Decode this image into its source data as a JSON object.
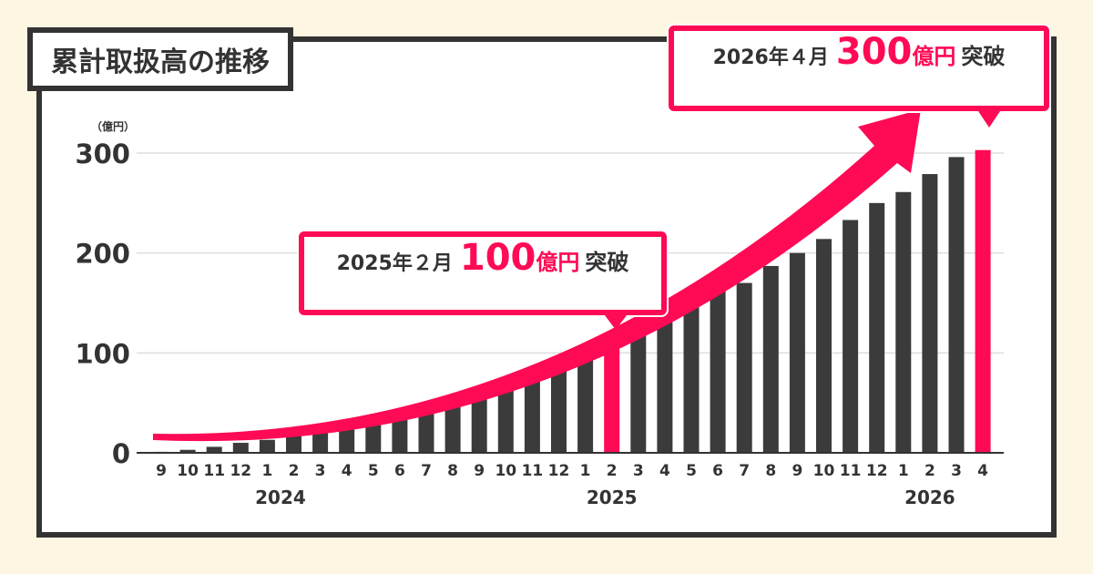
{
  "title": "累計取扱高の推移",
  "chart_data": {
    "type": "bar",
    "unit_label": "（億円）",
    "ylim": [
      0,
      300
    ],
    "yticks": [
      "0",
      "100",
      "200",
      "300"
    ],
    "categories": [
      "9",
      "10",
      "11",
      "12",
      "1",
      "2",
      "3",
      "4",
      "5",
      "6",
      "7",
      "8",
      "9",
      "10",
      "11",
      "12",
      "1",
      "2",
      "3",
      "4",
      "5",
      "6",
      "7",
      "8",
      "9",
      "10",
      "11",
      "12",
      "1",
      "2",
      "3",
      "4"
    ],
    "values": [
      1,
      3,
      6,
      10,
      13,
      17,
      20,
      25,
      28,
      33,
      39,
      47,
      58,
      70,
      79,
      89,
      100,
      106,
      121,
      135,
      146,
      162,
      170,
      187,
      200,
      214,
      233,
      250,
      261,
      279,
      296,
      303
    ],
    "highlight_indices": [
      17,
      31
    ],
    "years": [
      {
        "label": "2024",
        "index": 4.5
      },
      {
        "label": "2025",
        "index": 17
      },
      {
        "label": "2026",
        "index": 29
      }
    ],
    "bar_color": "#3b3b3b",
    "highlight_color": "#ff0a55",
    "axis_color": "#333333",
    "grid": true
  },
  "callouts": [
    {
      "prefix": "2025年２月",
      "amount": "100",
      "unit": "億円",
      "suffix": "突破"
    },
    {
      "prefix": "2026年４月",
      "amount": "300",
      "unit": "億円",
      "suffix": "突破"
    }
  ],
  "colors": {
    "accent": "#ff0a55",
    "dark": "#333333",
    "background": "#fdf6e3"
  }
}
